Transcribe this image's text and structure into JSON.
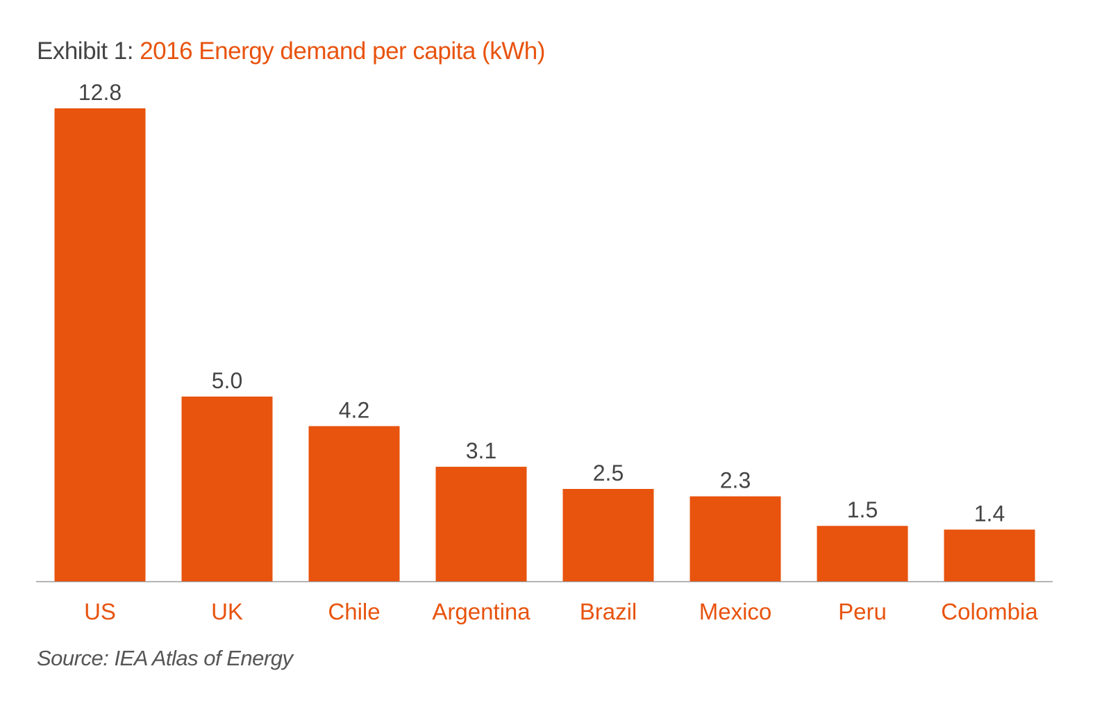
{
  "title_prefix": "Exhibit 1: ",
  "title": "2016 Energy demand per capita (kWh)",
  "source": "Source: IEA Atlas of Energy",
  "colors": {
    "bar": "#e8530e",
    "category_label": "#e8530e",
    "value_label": "#444444",
    "axis": "#999999"
  },
  "chart_data": {
    "type": "bar",
    "title": "2016 Energy demand per capita (kWh)",
    "categories": [
      "US",
      "UK",
      "Chile",
      "Argentina",
      "Brazil",
      "Mexico",
      "Peru",
      "Colombia"
    ],
    "values": [
      12.8,
      5.0,
      4.2,
      3.1,
      2.5,
      2.3,
      1.5,
      1.4
    ],
    "value_labels": [
      "12.8",
      "5.0",
      "4.2",
      "3.1",
      "2.5",
      "2.3",
      "1.5",
      "1.4"
    ],
    "xlabel": "",
    "ylabel": "",
    "ylim": [
      0,
      12.8
    ],
    "grid": false,
    "legend": "none"
  }
}
